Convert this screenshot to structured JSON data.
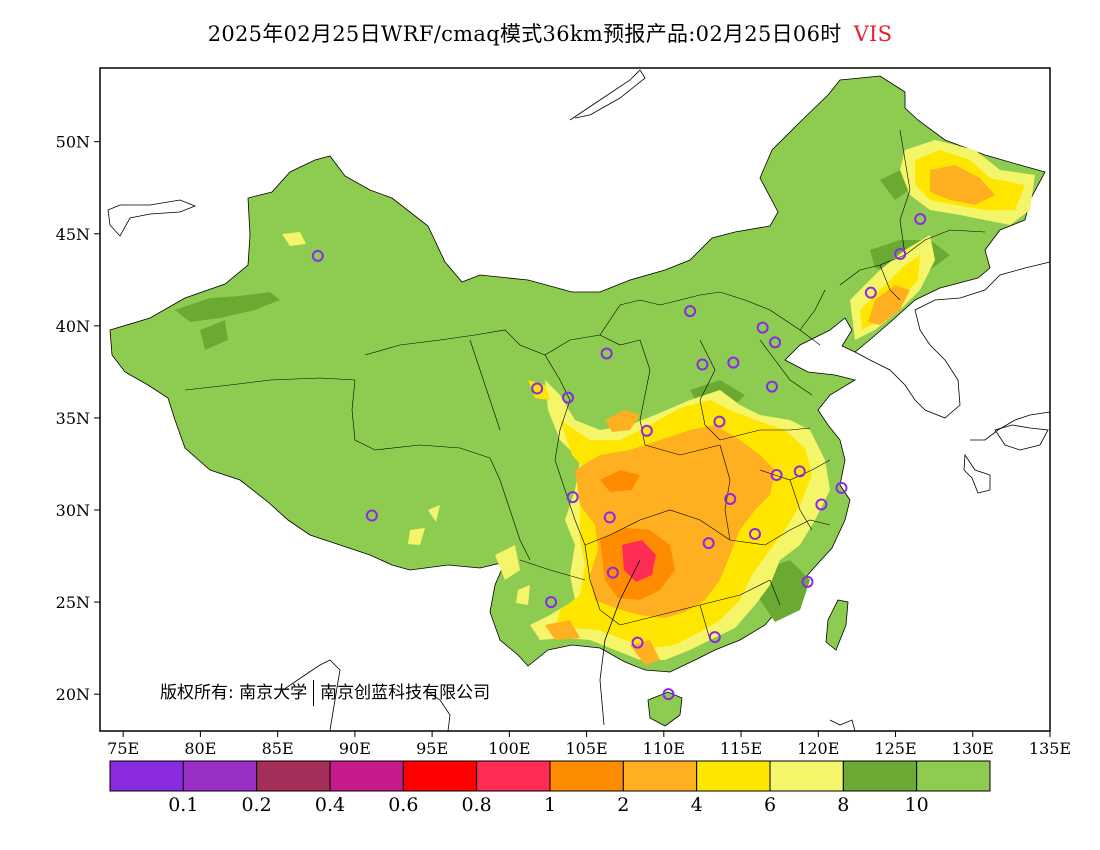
{
  "title": {
    "main": "2025年02月25日WRF/cmaq模式36km预报产品:02月25日06时",
    "variable": "VIS"
  },
  "copyright": {
    "label": "版权所有:",
    "org1": "南京大学",
    "org2": "南京创蓝科技有限公司"
  },
  "axes": {
    "lat_ticks": [
      "20N",
      "25N",
      "30N",
      "35N",
      "40N",
      "45N",
      "50N"
    ],
    "lat_values": [
      20,
      25,
      30,
      35,
      40,
      45,
      50
    ],
    "lon_ticks": [
      "75E",
      "80E",
      "85E",
      "90E",
      "95E",
      "100E",
      "105E",
      "110E",
      "115E",
      "120E",
      "125E",
      "130E",
      "135E"
    ],
    "lon_values": [
      75,
      80,
      85,
      90,
      95,
      100,
      105,
      110,
      115,
      120,
      125,
      130,
      135
    ],
    "lon_range": [
      73.5,
      135
    ],
    "lat_range": [
      18,
      54
    ]
  },
  "colorbar": {
    "colors": [
      "#8a2be2",
      "#9b30c8",
      "#a62e5a",
      "#c51a8a",
      "#ff0000",
      "#ff2d55",
      "#ff8c00",
      "#ffb020",
      "#ffe600",
      "#f5f56a",
      "#6aaa32",
      "#8dcc50"
    ],
    "labels": [
      "0.1",
      "0.2",
      "0.4",
      "0.6",
      "0.8",
      "1",
      "2",
      "4",
      "6",
      "8",
      "10"
    ]
  },
  "legend_colors": {
    "land": "#8dcc50",
    "dark_green": "#6aaa32",
    "light_yellow": "#f5f56a",
    "yellow": "#ffe600",
    "light_orange": "#ffb020",
    "orange": "#ff8c00",
    "pink": "#ff2d55",
    "station": "#8a2be2"
  },
  "stations": [
    {
      "lon": 87.6,
      "lat": 43.8
    },
    {
      "lon": 91.1,
      "lat": 29.7
    },
    {
      "lon": 101.8,
      "lat": 36.6
    },
    {
      "lon": 103.8,
      "lat": 36.1
    },
    {
      "lon": 106.3,
      "lat": 38.5
    },
    {
      "lon": 111.7,
      "lat": 40.8
    },
    {
      "lon": 116.4,
      "lat": 39.9
    },
    {
      "lon": 117.2,
      "lat": 39.1
    },
    {
      "lon": 114.5,
      "lat": 38.0
    },
    {
      "lon": 112.5,
      "lat": 37.9
    },
    {
      "lon": 117.0,
      "lat": 36.7
    },
    {
      "lon": 113.6,
      "lat": 34.8
    },
    {
      "lon": 108.9,
      "lat": 34.3
    },
    {
      "lon": 104.1,
      "lat": 30.7
    },
    {
      "lon": 106.5,
      "lat": 29.6
    },
    {
      "lon": 114.3,
      "lat": 30.6
    },
    {
      "lon": 117.3,
      "lat": 31.9
    },
    {
      "lon": 118.8,
      "lat": 32.1
    },
    {
      "lon": 121.5,
      "lat": 31.2
    },
    {
      "lon": 120.2,
      "lat": 30.3
    },
    {
      "lon": 112.9,
      "lat": 28.2
    },
    {
      "lon": 115.9,
      "lat": 28.7
    },
    {
      "lon": 119.3,
      "lat": 26.1
    },
    {
      "lon": 106.7,
      "lat": 26.6
    },
    {
      "lon": 102.7,
      "lat": 25.0
    },
    {
      "lon": 108.3,
      "lat": 22.8
    },
    {
      "lon": 113.3,
      "lat": 23.1
    },
    {
      "lon": 110.3,
      "lat": 20.0
    },
    {
      "lon": 123.4,
      "lat": 41.8
    },
    {
      "lon": 125.3,
      "lat": 43.9
    },
    {
      "lon": 126.6,
      "lat": 45.8
    }
  ]
}
